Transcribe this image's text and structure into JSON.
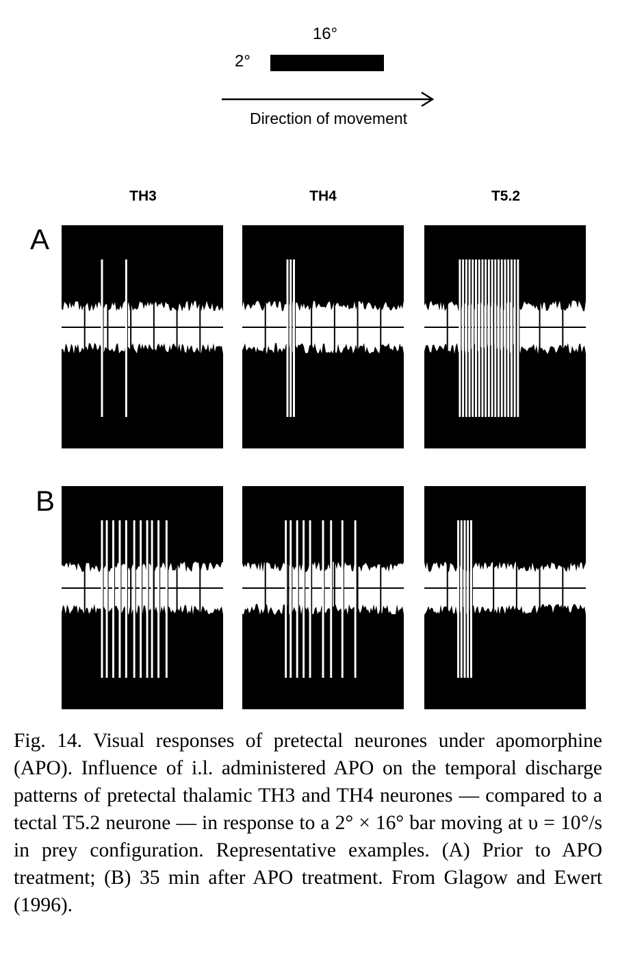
{
  "stimulus": {
    "width_label": "16°",
    "height_label": "2°",
    "direction_label": "Direction of movement"
  },
  "columns": [
    "TH3",
    "TH4",
    "T5.2"
  ],
  "rows": [
    "A",
    "B"
  ],
  "panels": {
    "A": [
      {
        "neurone": "TH3",
        "spikes": [
          0.25,
          0.4
        ]
      },
      {
        "neurone": "TH4",
        "spikes": [
          0.28,
          0.3,
          0.32
        ]
      },
      {
        "neurone": "T5.2",
        "spikes": [
          0.22,
          0.24,
          0.26,
          0.28,
          0.3,
          0.32,
          0.34,
          0.36,
          0.38,
          0.4,
          0.42,
          0.44,
          0.46,
          0.48,
          0.5,
          0.52,
          0.54,
          0.56,
          0.58
        ]
      }
    ],
    "B": [
      {
        "neurone": "TH3",
        "spikes": [
          0.25,
          0.28,
          0.32,
          0.36,
          0.4,
          0.45,
          0.49,
          0.53,
          0.56,
          0.6,
          0.65
        ]
      },
      {
        "neurone": "TH4",
        "spikes": [
          0.27,
          0.3,
          0.34,
          0.38,
          0.42,
          0.5,
          0.55,
          0.62,
          0.7
        ]
      },
      {
        "neurone": "T5.2",
        "spikes": [
          0.21,
          0.23,
          0.25,
          0.27,
          0.29
        ]
      }
    ]
  },
  "caption": "Fig. 14. Visual responses of pretectal neurones under apomorphine (APO). Influence of i.l. administered APO on the temporal discharge patterns of pretectal thalamic TH3 and TH4 neurones — compared to a tectal T5.2 neurone — in response to a 2° × 16° bar moving at υ = 10°/s in prey configuration. Representative examples. (A) Prior to APO treatment; (B) 35 min after APO treatment. From Glagow and Ewert (1996)."
}
